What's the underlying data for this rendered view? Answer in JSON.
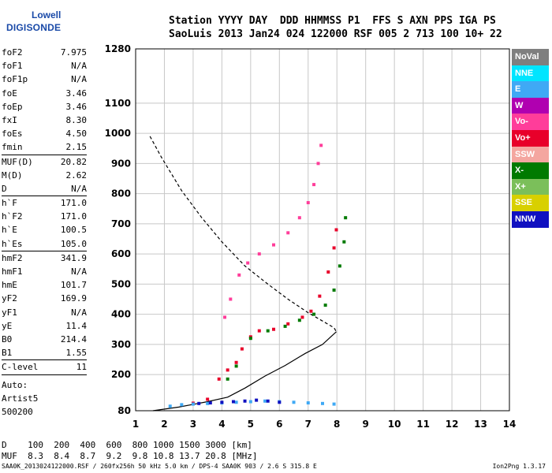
{
  "logo": {
    "line1": "Lowell",
    "line2": "DIGISONDE"
  },
  "header": {
    "line1": "Station YYYY DAY  DDD HHMMSS P1  FFS S AXN PPS IGA PS",
    "line2": "SaoLuis 2013 Jan24 024 122000 RSF 005 2 713 100 10+ 22"
  },
  "params": [
    {
      "name": "foF2",
      "value": "7.975"
    },
    {
      "name": "foF1",
      "value": "N/A"
    },
    {
      "name": "foF1p",
      "value": "N/A"
    },
    {
      "name": "foE",
      "value": "3.46"
    },
    {
      "name": "foEp",
      "value": "3.46"
    },
    {
      "name": "fxI",
      "value": "8.30"
    },
    {
      "name": "foEs",
      "value": "4.50"
    },
    {
      "name": "fmin",
      "value": "2.15",
      "sep": true
    },
    {
      "name": "MUF(D)",
      "value": "20.82"
    },
    {
      "name": "M(D)",
      "value": "2.62"
    },
    {
      "name": "D",
      "value": "N/A",
      "sep": true
    },
    {
      "name": "h`F",
      "value": "171.0"
    },
    {
      "name": "h`F2",
      "value": "171.0"
    },
    {
      "name": "h`E",
      "value": "100.5"
    },
    {
      "name": "h`Es",
      "value": "105.0",
      "sep": true
    },
    {
      "name": "hmF2",
      "value": "341.9"
    },
    {
      "name": "hmF1",
      "value": "N/A"
    },
    {
      "name": "hmE",
      "value": "101.7"
    },
    {
      "name": "yF2",
      "value": "169.9"
    },
    {
      "name": "yF1",
      "value": "N/A"
    },
    {
      "name": "yE",
      "value": "11.4"
    },
    {
      "name": "B0",
      "value": "214.4"
    },
    {
      "name": "B1",
      "value": "1.55",
      "sep": true
    },
    {
      "name": "C-level",
      "value": "11",
      "sep": true
    }
  ],
  "auto_block": {
    "line1": "Auto:",
    "line2": "Artist5",
    "line3": "500200"
  },
  "muf_table": {
    "line1": "D    100  200  400  600  800 1000 1500 3000 [km]",
    "line2": "MUF  8.3  8.4  8.7  9.2  9.8 10.8 13.7 20.8 [MHz]"
  },
  "footer": {
    "text": "SAA0K_2013024122000.RSF / 260fx256h 50 kHz 5.0 km / DPS-4 SAA0K 903 / 2.6 S 315.8 E",
    "version": "Ion2Png 1.3.17"
  },
  "legend": [
    {
      "label": "NoVal",
      "color": "#7f7f7f"
    },
    {
      "label": "NNE",
      "color": "#00e5ff"
    },
    {
      "label": "E",
      "color": "#3fa9f5"
    },
    {
      "label": "W",
      "color": "#b000b0"
    },
    {
      "label": "Vo-",
      "color": "#ff3d9a"
    },
    {
      "label": "Vo+",
      "color": "#e8002a"
    },
    {
      "label": "SSW",
      "color": "#f4a6a0"
    },
    {
      "label": "X-",
      "color": "#007a00"
    },
    {
      "label": "X+",
      "color": "#7bbf5a"
    },
    {
      "label": "SSE",
      "color": "#d8d000"
    },
    {
      "label": "NNW",
      "color": "#1010c0"
    }
  ],
  "chart_data": {
    "type": "scatter",
    "xlim": [
      1,
      14
    ],
    "ylim": [
      80,
      1280
    ],
    "x_ticks": [
      1,
      2,
      3,
      4,
      5,
      6,
      7,
      8,
      9,
      10,
      11,
      12,
      13,
      14
    ],
    "y_ticks": [
      80,
      200,
      300,
      400,
      500,
      600,
      700,
      800,
      900,
      1000,
      1100,
      1280
    ],
    "grid": true,
    "series": [
      {
        "name": "O-trace",
        "color": "#e8002a",
        "points": [
          [
            3.0,
            105
          ],
          [
            3.5,
            118
          ],
          [
            3.9,
            185
          ],
          [
            4.2,
            215
          ],
          [
            4.5,
            240
          ],
          [
            4.7,
            285
          ],
          [
            5.0,
            325
          ],
          [
            5.3,
            345
          ],
          [
            5.8,
            350
          ],
          [
            6.3,
            368
          ],
          [
            6.8,
            390
          ],
          [
            7.1,
            410
          ],
          [
            7.4,
            460
          ],
          [
            7.7,
            540
          ],
          [
            7.9,
            620
          ],
          [
            7.98,
            680
          ]
        ]
      },
      {
        "name": "X-trace",
        "color": "#007a00",
        "points": [
          [
            4.2,
            185
          ],
          [
            4.5,
            228
          ],
          [
            5.0,
            320
          ],
          [
            5.6,
            345
          ],
          [
            6.2,
            360
          ],
          [
            6.7,
            380
          ],
          [
            7.2,
            400
          ],
          [
            7.6,
            430
          ],
          [
            7.9,
            480
          ],
          [
            8.1,
            560
          ],
          [
            8.25,
            640
          ],
          [
            8.3,
            720
          ]
        ]
      },
      {
        "name": "oblique-upper",
        "color": "#ff3d9a",
        "points": [
          [
            4.1,
            390
          ],
          [
            4.3,
            450
          ],
          [
            4.6,
            530
          ],
          [
            4.9,
            570
          ],
          [
            5.3,
            600
          ],
          [
            5.8,
            630
          ],
          [
            6.3,
            670
          ],
          [
            6.7,
            720
          ],
          [
            7.0,
            770
          ],
          [
            7.2,
            830
          ],
          [
            7.35,
            900
          ],
          [
            7.45,
            960
          ]
        ]
      },
      {
        "name": "Es-layer",
        "color": "#3fa9f5",
        "points": [
          [
            2.2,
            95
          ],
          [
            2.6,
            100
          ],
          [
            3.0,
            102
          ],
          [
            3.5,
            104
          ],
          [
            4.0,
            106
          ],
          [
            4.5,
            108
          ],
          [
            5.0,
            110
          ],
          [
            5.5,
            112
          ],
          [
            6.0,
            110
          ],
          [
            6.5,
            108
          ],
          [
            7.0,
            106
          ],
          [
            7.5,
            104
          ],
          [
            7.9,
            102
          ]
        ]
      },
      {
        "name": "NNW-Es",
        "color": "#1010c0",
        "points": [
          [
            3.2,
            104
          ],
          [
            3.6,
            106
          ],
          [
            4.0,
            108
          ],
          [
            4.4,
            110
          ],
          [
            4.8,
            112
          ],
          [
            5.2,
            115
          ],
          [
            5.6,
            112
          ],
          [
            6.0,
            108
          ]
        ]
      }
    ],
    "profile_solid": [
      [
        1.6,
        80
      ],
      [
        2.5,
        92
      ],
      [
        3.5,
        110
      ],
      [
        4.2,
        125
      ],
      [
        4.8,
        155
      ],
      [
        5.5,
        195
      ],
      [
        6.2,
        230
      ],
      [
        6.9,
        270
      ],
      [
        7.5,
        300
      ],
      [
        7.98,
        342
      ]
    ],
    "profile_dashed": [
      [
        1.5,
        990
      ],
      [
        1.9,
        920
      ],
      [
        2.6,
        810
      ],
      [
        3.3,
        720
      ],
      [
        4.0,
        640
      ],
      [
        4.8,
        560
      ],
      [
        5.6,
        500
      ],
      [
        6.3,
        450
      ],
      [
        7.0,
        405
      ],
      [
        7.6,
        372
      ],
      [
        7.9,
        355
      ],
      [
        7.98,
        342
      ]
    ]
  }
}
